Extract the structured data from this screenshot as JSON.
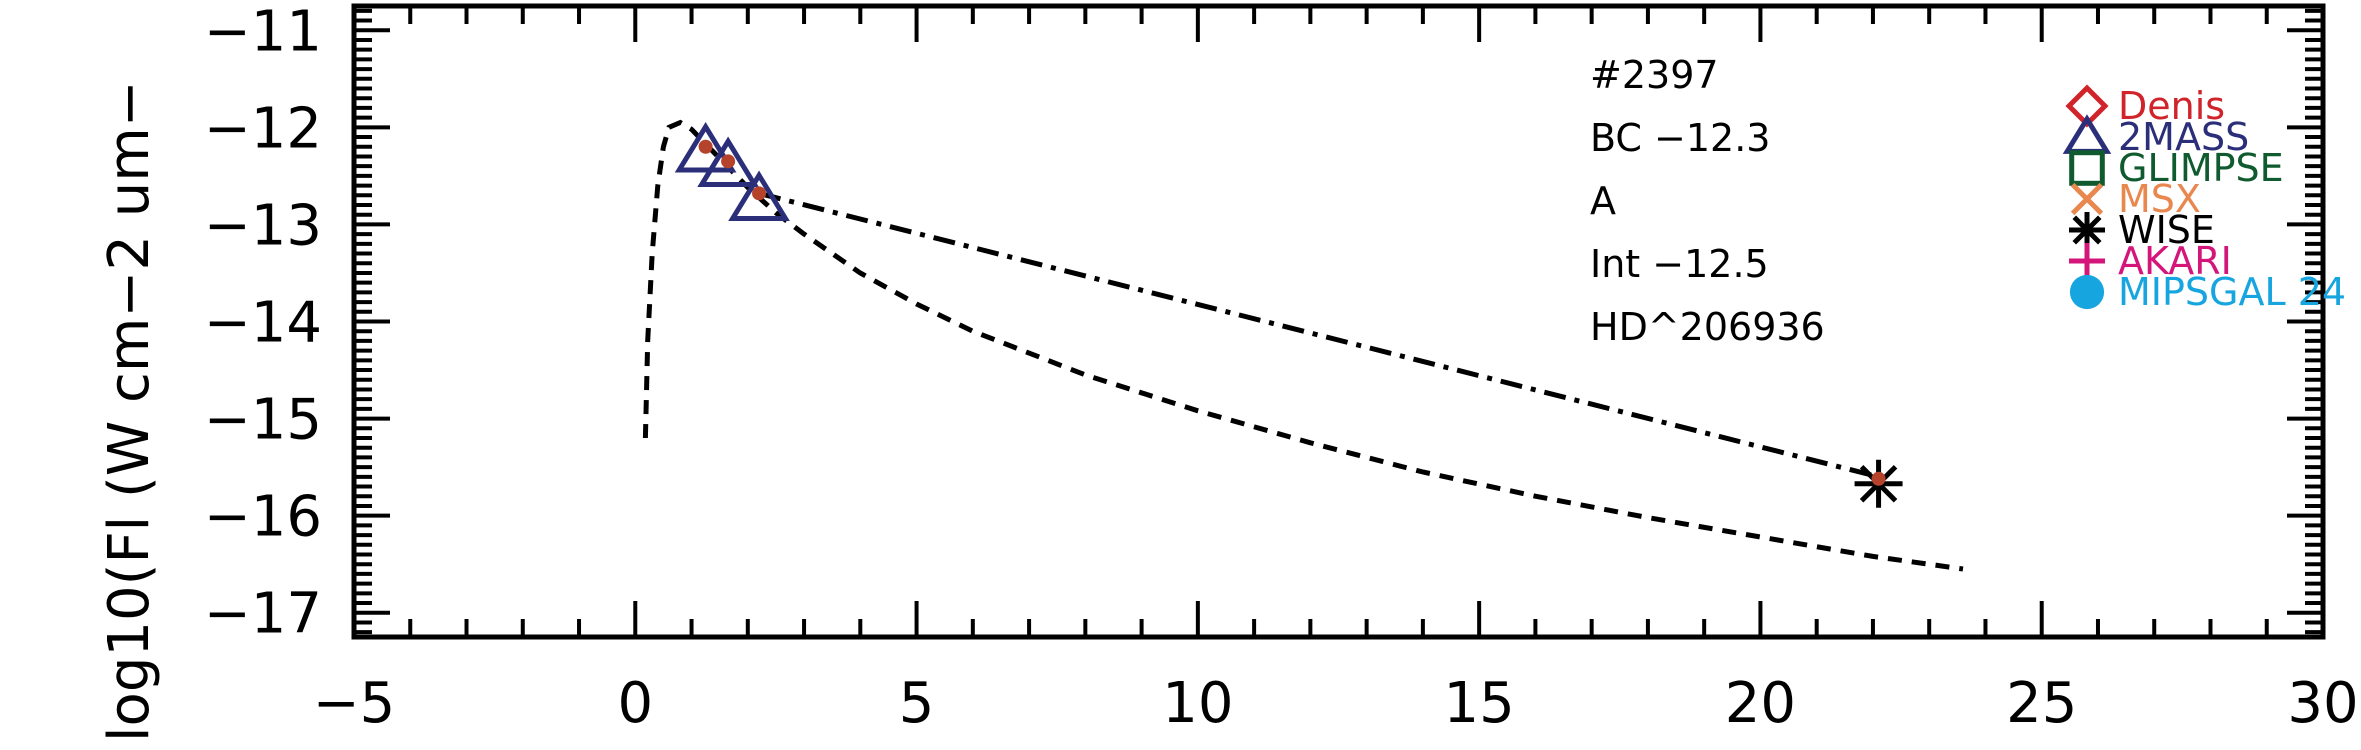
{
  "chart_data": {
    "type": "line",
    "title": "",
    "xlabel": "",
    "ylabel": "log10(Fl (W cm−2 um−",
    "xlim": [
      -5,
      30
    ],
    "ylim": [
      -17.25,
      -10.75
    ],
    "x_ticks": [
      -5,
      0,
      5,
      10,
      15,
      20,
      25,
      30
    ],
    "x_tick_labels": [
      "−5",
      "0",
      "5",
      "10",
      "15",
      "20",
      "25",
      "30"
    ],
    "y_ticks": [
      -11,
      -12,
      -13,
      -14,
      -15,
      -16,
      -17
    ],
    "y_tick_labels": [
      "−11",
      "−12",
      "−13",
      "−14",
      "−15",
      "−16",
      "−17"
    ],
    "grid": false,
    "annotations": [
      "#2397",
      "BC −12.3",
      "A",
      "Int −12.5",
      "HD^206936"
    ],
    "series": [
      {
        "style": "dashed",
        "color": "#000000",
        "x": [
          0.18,
          0.22,
          0.3,
          0.4,
          0.5,
          0.6,
          0.8,
          1.0,
          1.3,
          1.6,
          2.0,
          2.5,
          3.0,
          4.0,
          5.0,
          6.0,
          8.0,
          10.0,
          12.0,
          14.0,
          16.0,
          18.0,
          20.0,
          22.0,
          23.6
        ],
        "y": [
          -15.2,
          -14.2,
          -13.3,
          -12.6,
          -12.2,
          -12.0,
          -11.95,
          -12.02,
          -12.2,
          -12.38,
          -12.62,
          -12.88,
          -13.1,
          -13.5,
          -13.82,
          -14.1,
          -14.55,
          -14.92,
          -15.25,
          -15.55,
          -15.8,
          -16.02,
          -16.22,
          -16.42,
          -16.55
        ]
      },
      {
        "style": "dashdot",
        "color": "#000000",
        "x": [
          2.2,
          22.1
        ],
        "y": [
          -12.68,
          -15.6
        ]
      }
    ],
    "points": [
      {
        "survey": "2MASS",
        "x": 1.25,
        "y": -12.2
      },
      {
        "survey": "2MASS",
        "x": 1.65,
        "y": -12.35
      },
      {
        "survey": "2MASS",
        "x": 2.2,
        "y": -12.7
      },
      {
        "survey": "WISE",
        "x": 22.1,
        "y": -15.63
      }
    ],
    "model_points": [
      {
        "x": 1.25,
        "y": -12.2
      },
      {
        "x": 1.65,
        "y": -12.35
      },
      {
        "x": 2.2,
        "y": -12.68
      },
      {
        "x": 22.1,
        "y": -15.62
      }
    ],
    "legend": {
      "placement": "top-right",
      "entries": [
        {
          "name": "Denis",
          "marker": "diamond",
          "color": "#d1232a"
        },
        {
          "name": "2MASS",
          "marker": "triangle",
          "color": "#2b2f7a"
        },
        {
          "name": "GLIMPSE",
          "marker": "square",
          "color": "#0f5a2e"
        },
        {
          "name": "MSX",
          "marker": "x",
          "color": "#e8884f"
        },
        {
          "name": "WISE",
          "marker": "asterisk",
          "color": "#000000"
        },
        {
          "name": "AKARI",
          "marker": "plus",
          "color": "#d4157a"
        },
        {
          "name": "MIPSGAL 24",
          "marker": "circle",
          "color": "#17a5df"
        }
      ]
    },
    "model_point_color": "#b5422a"
  }
}
